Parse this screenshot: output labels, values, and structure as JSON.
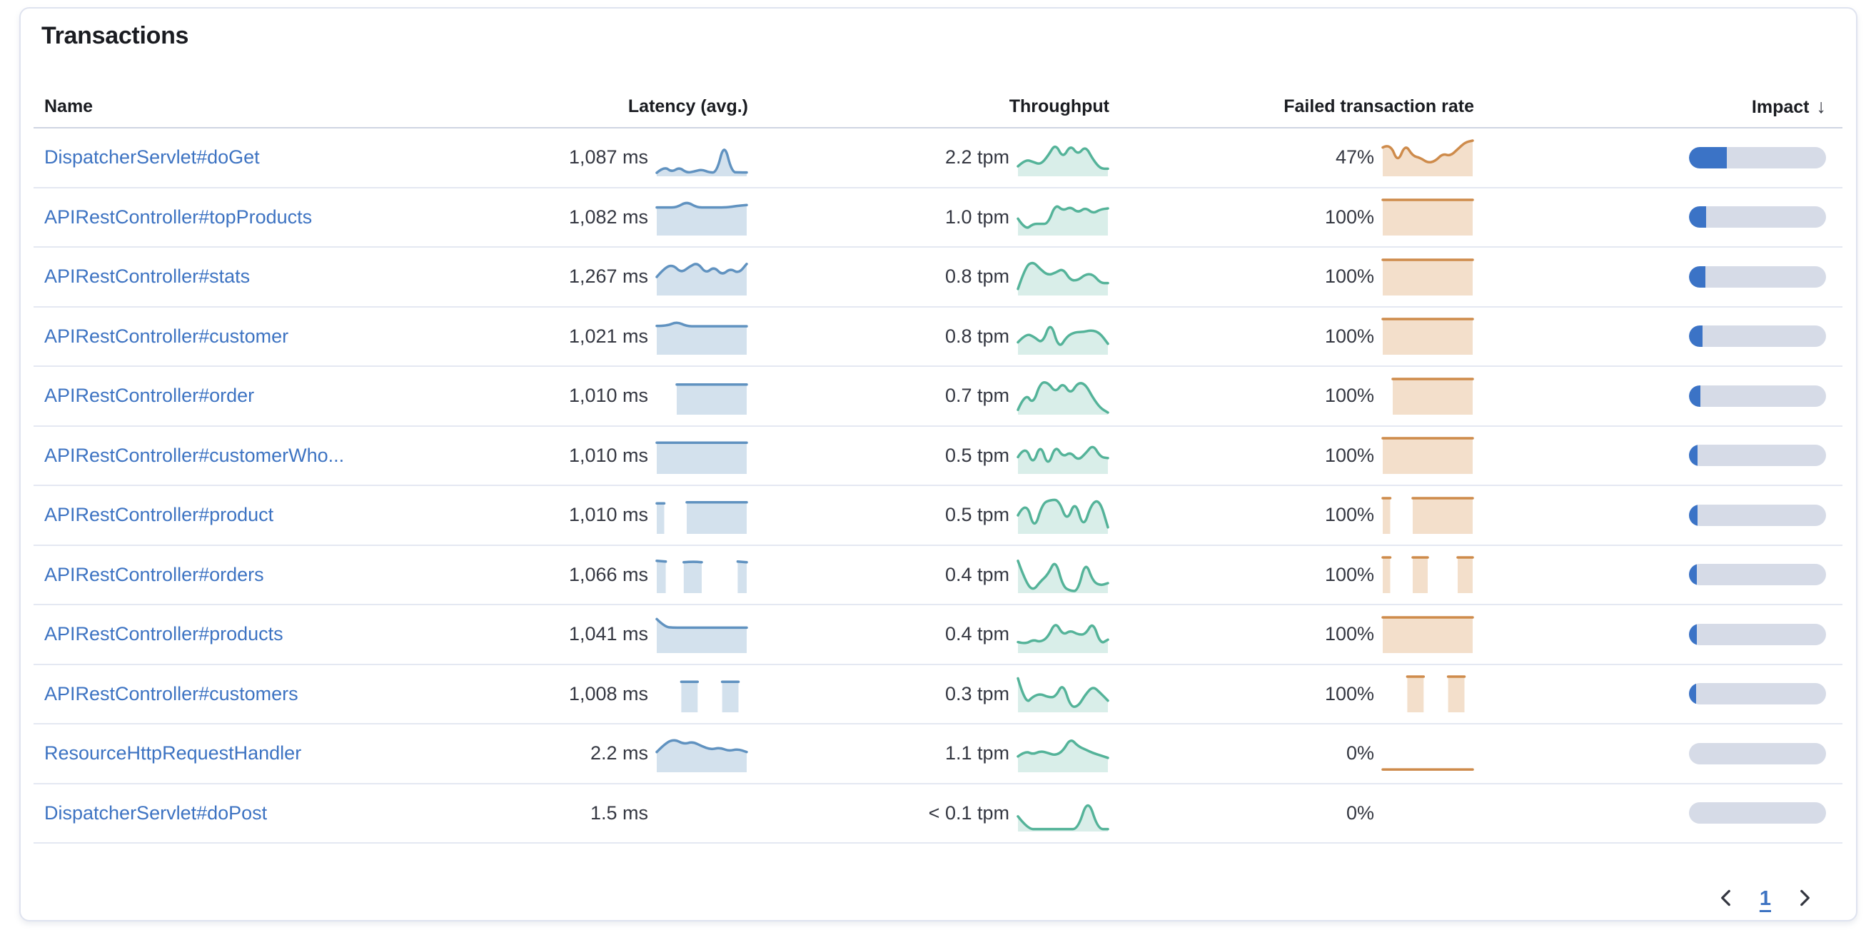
{
  "panel": {
    "title": "Transactions"
  },
  "columns": [
    {
      "label": "Name"
    },
    {
      "label": "Latency (avg.)"
    },
    {
      "label": "Throughput"
    },
    {
      "label": "Failed transaction rate"
    },
    {
      "label": "Impact",
      "sorted": "desc",
      "sort_indicator": "↓"
    }
  ],
  "colors": {
    "link": "#3d73c2",
    "text": "#343741",
    "heading": "#1a1c21",
    "latency_line": "#6092c0",
    "latency_fill": "rgba(96,146,192,0.28)",
    "throughput_line": "#54b399",
    "throughput_fill": "rgba(84,179,153,0.22)",
    "failed_line": "#ce8b4b",
    "failed_fill": "rgba(214,148,83,0.30)",
    "impact_bar": "#3b73c6",
    "impact_track": "#d6dbe7"
  },
  "pagination": {
    "current_page": "1",
    "prev_icon": "chevron-left",
    "next_icon": "chevron-right"
  },
  "rows": [
    {
      "name": "DispatcherServlet#doGet",
      "latency": "1,087 ms",
      "throughput": "2.2 tpm",
      "failed_rate": "47%",
      "impact_pct": 27.8,
      "latency_spark": {
        "points": [
          0.06,
          0.25,
          0.08,
          0.22,
          0.06,
          0.1,
          0.16,
          0.07,
          0.07,
          0.95,
          0.08,
          0.07,
          0.07
        ]
      },
      "throughput_spark": {
        "points": [
          0.25,
          0.45,
          0.38,
          0.3,
          0.55,
          0.92,
          0.48,
          0.88,
          0.58,
          0.85,
          0.45,
          0.18,
          0.18
        ]
      },
      "failed_spark": {
        "points": [
          0.8,
          0.92,
          0.35,
          0.9,
          0.55,
          0.5,
          0.35,
          0.4,
          0.62,
          0.55,
          0.75,
          0.95,
          1.0
        ]
      }
    },
    {
      "name": "APIRestController#topProducts",
      "latency": "1,082 ms",
      "throughput": "1.0 tpm",
      "failed_rate": "100%",
      "impact_pct": 12.5,
      "latency_spark": {
        "points": [
          0.78,
          0.78,
          0.78,
          0.95,
          0.78,
          0.78,
          0.78,
          0.78,
          0.82,
          0.85
        ]
      },
      "throughput_spark": {
        "points": [
          0.45,
          0.12,
          0.3,
          0.3,
          0.3,
          0.88,
          0.68,
          0.8,
          0.62,
          0.78,
          0.6,
          0.72,
          0.75
        ]
      },
      "failed_spark": {
        "points": [
          1,
          1,
          1,
          1,
          1,
          1,
          1,
          1,
          1,
          1
        ]
      }
    },
    {
      "name": "APIRestController#stats",
      "latency": "1,267 ms",
      "throughput": "0.8 tpm",
      "failed_rate": "100%",
      "impact_pct": 12,
      "latency_spark": {
        "points": [
          0.5,
          0.78,
          0.85,
          0.62,
          0.8,
          0.92,
          0.6,
          0.8,
          0.55,
          0.75,
          0.6,
          0.88
        ]
      },
      "throughput_spark": {
        "points": [
          0.15,
          0.8,
          0.95,
          0.72,
          0.55,
          0.62,
          0.75,
          0.4,
          0.4,
          0.58,
          0.58,
          0.32,
          0.32
        ]
      },
      "failed_spark": {
        "points": [
          1,
          1,
          1,
          1,
          1,
          1,
          1,
          1,
          1,
          1
        ]
      }
    },
    {
      "name": "APIRestController#customer",
      "latency": "1,021 ms",
      "throughput": "0.8 tpm",
      "failed_rate": "100%",
      "impact_pct": 10,
      "latency_spark": {
        "points": [
          0.8,
          0.8,
          0.92,
          0.79,
          0.79,
          0.79,
          0.79,
          0.79,
          0.79,
          0.79
        ]
      },
      "throughput_spark": {
        "points": [
          0.32,
          0.58,
          0.48,
          0.28,
          0.95,
          0.12,
          0.5,
          0.62,
          0.62,
          0.68,
          0.6,
          0.28
        ]
      },
      "failed_spark": {
        "points": [
          1,
          1,
          1,
          1,
          1,
          1,
          1,
          1,
          1,
          1
        ]
      }
    },
    {
      "name": "APIRestController#order",
      "latency": "1,010 ms",
      "throughput": "0.7 tpm",
      "failed_rate": "100%",
      "impact_pct": 8.3,
      "latency_spark": {
        "points": [
          null,
          null,
          0.84,
          0.84,
          0.84,
          0.84,
          0.84,
          0.84,
          0.84,
          0.84
        ]
      },
      "throughput_spark": {
        "points": [
          0.1,
          0.6,
          0.25,
          0.9,
          0.9,
          0.6,
          0.9,
          0.55,
          0.9,
          0.85,
          0.45,
          0.15,
          0.02
        ]
      },
      "failed_spark": {
        "points": [
          null,
          1,
          1,
          1,
          1,
          1,
          1,
          1,
          1,
          1
        ]
      }
    },
    {
      "name": "APIRestController#customerWho...",
      "latency": "1,010 ms",
      "throughput": "0.5 tpm",
      "failed_rate": "100%",
      "impact_pct": 6.4,
      "latency_spark": {
        "points": [
          0.87,
          0.87,
          0.87,
          0.87,
          0.87,
          0.87,
          0.87,
          0.87,
          0.87,
          0.87
        ]
      },
      "throughput_spark": {
        "points": [
          0.45,
          0.8,
          0.2,
          0.85,
          0.15,
          0.8,
          0.45,
          0.6,
          0.35,
          0.55,
          0.82,
          0.45,
          0.42
        ]
      },
      "failed_spark": {
        "points": [
          1,
          1,
          1,
          1,
          1,
          1,
          1,
          1,
          1,
          1
        ]
      }
    },
    {
      "name": "APIRestController#product",
      "latency": "1,010 ms",
      "throughput": "0.5 tpm",
      "failed_rate": "100%",
      "impact_pct": 6.3,
      "latency_spark": {
        "points": [
          0.85,
          0.85,
          null,
          null,
          0.88,
          0.88,
          0.88,
          0.88,
          0.88,
          0.88,
          0.88,
          0.88,
          0.88
        ]
      },
      "throughput_spark": {
        "points": [
          0.5,
          0.95,
          0.05,
          0.85,
          0.95,
          0.95,
          0.3,
          0.95,
          0.1,
          0.85,
          0.95,
          0.15
        ]
      },
      "failed_spark": {
        "points": [
          1,
          1,
          null,
          null,
          1,
          1,
          1,
          1,
          1,
          1,
          1,
          1,
          1
        ]
      }
    },
    {
      "name": "APIRestController#orders",
      "latency": "1,066 ms",
      "throughput": "0.4 tpm",
      "failed_rate": "100%",
      "impact_pct": 5.9,
      "latency_spark": {
        "points": [
          0.9,
          0.88,
          null,
          0.86,
          0.88,
          0.86,
          null,
          null,
          null,
          0.88,
          0.86
        ]
      },
      "throughput_spark": {
        "points": [
          0.9,
          0.3,
          0.02,
          0.3,
          0.5,
          0.95,
          0.15,
          0.02,
          0.02,
          0.9,
          0.3,
          0.18,
          0.25
        ]
      },
      "failed_spark": {
        "points": [
          1,
          1,
          null,
          null,
          1,
          1,
          1,
          null,
          null,
          null,
          1,
          1,
          1
        ]
      }
    },
    {
      "name": "APIRestController#products",
      "latency": "1,041 ms",
      "throughput": "0.4 tpm",
      "failed_rate": "100%",
      "impact_pct": 5.9,
      "latency_spark": {
        "points": [
          0.95,
          0.72,
          0.7,
          0.7,
          0.7,
          0.7,
          0.7,
          0.7,
          0.7,
          0.7,
          0.7,
          0.7
        ]
      },
      "throughput_spark": {
        "points": [
          0.28,
          0.22,
          0.35,
          0.28,
          0.42,
          0.88,
          0.48,
          0.62,
          0.5,
          0.5,
          0.88,
          0.22,
          0.35
        ]
      },
      "failed_spark": {
        "points": [
          1,
          1,
          1,
          1,
          1,
          1,
          1,
          1,
          1,
          1
        ]
      }
    },
    {
      "name": "APIRestController#customers",
      "latency": "1,008 ms",
      "throughput": "0.3 tpm",
      "failed_rate": "100%",
      "impact_pct": 5.2,
      "latency_spark": {
        "points": [
          null,
          null,
          null,
          0.85,
          0.85,
          0.85,
          null,
          null,
          0.85,
          0.85,
          0.85,
          null
        ]
      },
      "throughput_spark": {
        "points": [
          0.95,
          0.2,
          0.42,
          0.5,
          0.4,
          0.4,
          0.82,
          0.12,
          0.12,
          0.48,
          0.72,
          0.52,
          0.3
        ]
      },
      "failed_spark": {
        "points": [
          null,
          null,
          null,
          1,
          1,
          1,
          null,
          null,
          1,
          1,
          1,
          null
        ]
      }
    },
    {
      "name": "ResourceHttpRequestHandler",
      "latency": "2.2 ms",
      "throughput": "1.1 tpm",
      "failed_rate": "0%",
      "impact_pct": 0,
      "latency_spark": {
        "points": [
          0.55,
          0.82,
          0.92,
          0.78,
          0.85,
          0.72,
          0.62,
          0.68,
          0.58,
          0.64,
          0.55
        ]
      },
      "throughput_spark": {
        "points": [
          0.42,
          0.58,
          0.48,
          0.58,
          0.52,
          0.45,
          0.58,
          0.95,
          0.72,
          0.62,
          0.52,
          0.45,
          0.38
        ]
      },
      "failed_spark": {
        "points": [
          0.04,
          0.04,
          0.04,
          0.04,
          0.04,
          0.04
        ],
        "line_only": true
      }
    },
    {
      "name": "DispatcherServlet#doPost",
      "latency": "1.5 ms",
      "throughput": "< 0.1 tpm",
      "failed_rate": "0%",
      "impact_pct": 0,
      "latency_spark": null,
      "throughput_spark": {
        "points": [
          0.4,
          0.03,
          0.03,
          0.03,
          0.03,
          0.03,
          0.03,
          0.95,
          0.03,
          0.03
        ]
      },
      "failed_spark": null
    }
  ]
}
